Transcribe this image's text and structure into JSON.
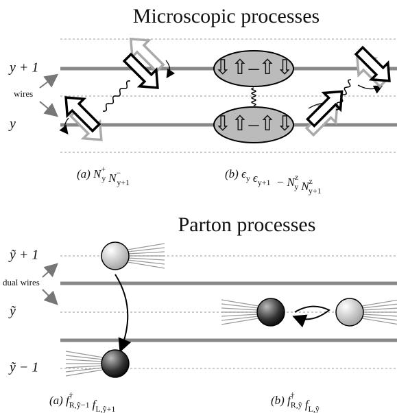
{
  "top": {
    "title": "Microscopic processes",
    "labels": [
      "y + 1",
      "y"
    ],
    "wires_label": "wires",
    "caption_a": [
      {
        "t": "(a) N",
        "sup": "+",
        "sub": "y"
      },
      {
        "t": "N",
        "sup": "−",
        "sub": "y+1"
      }
    ],
    "caption_b": [
      {
        "t": "(b) ϵ",
        "sub": "y"
      },
      {
        "t": "ϵ",
        "sub": "y+1"
      },
      {
        "t": " − N",
        "sup": "z",
        "sub": "y"
      },
      {
        "t": "N",
        "sup": "z",
        "sub": "y+1"
      }
    ],
    "spin_pair": "⇩⇧–⇧⇩"
  },
  "bottom": {
    "title": "Parton processes",
    "labels": [
      "ỹ + 1",
      "ỹ",
      "ỹ − 1"
    ],
    "wires_label": "dual wires",
    "caption_a": [
      {
        "t": "(a) f",
        "sup": "†",
        "sub": "R,ỹ−1"
      },
      {
        "t": "f",
        "sub": "L,ỹ+1"
      }
    ],
    "caption_b": [
      {
        "t": "(b) f",
        "sup": "†",
        "sub": "R,ỹ"
      },
      {
        "t": "f",
        "sub": "L,ỹ"
      }
    ]
  }
}
